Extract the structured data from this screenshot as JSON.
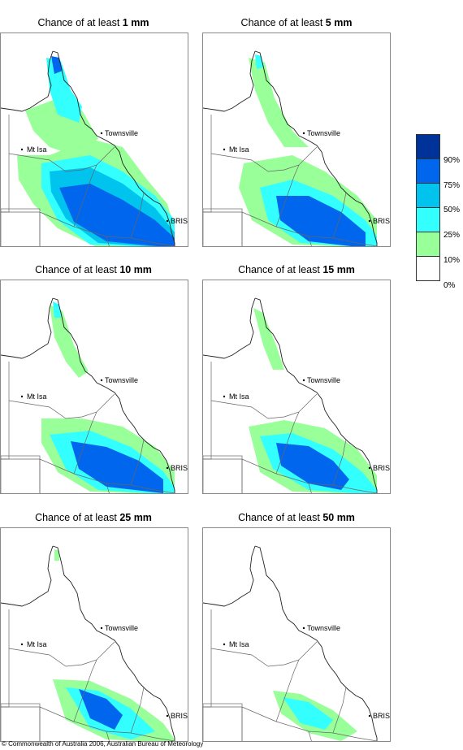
{
  "panels": [
    {
      "prefix": "Chance of at least ",
      "amount": "1 mm",
      "level": 0
    },
    {
      "prefix": "Chance of at least ",
      "amount": "5 mm",
      "level": 1
    },
    {
      "prefix": "Chance of at least ",
      "amount": "10 mm",
      "level": 2
    },
    {
      "prefix": "Chance of at least ",
      "amount": "15 mm",
      "level": 3
    },
    {
      "prefix": "Chance of at least ",
      "amount": "25 mm",
      "level": 4
    },
    {
      "prefix": "Chance of at least ",
      "amount": "50 mm",
      "level": 5
    }
  ],
  "places": {
    "townsville": "Townsville",
    "mtisa": "Mt Isa",
    "bris": "BRIS"
  },
  "legend": {
    "labels": [
      "90%",
      "75%",
      "50%",
      "25%",
      "10%",
      "0%"
    ],
    "colors": [
      "#003399",
      "#0066ee",
      "#00c3ee",
      "#33ffff",
      "#99ff99",
      "#ffffff"
    ]
  },
  "copyright": "© Commonwealth of Australia 2006, Australian Bureau of Meteorology"
}
